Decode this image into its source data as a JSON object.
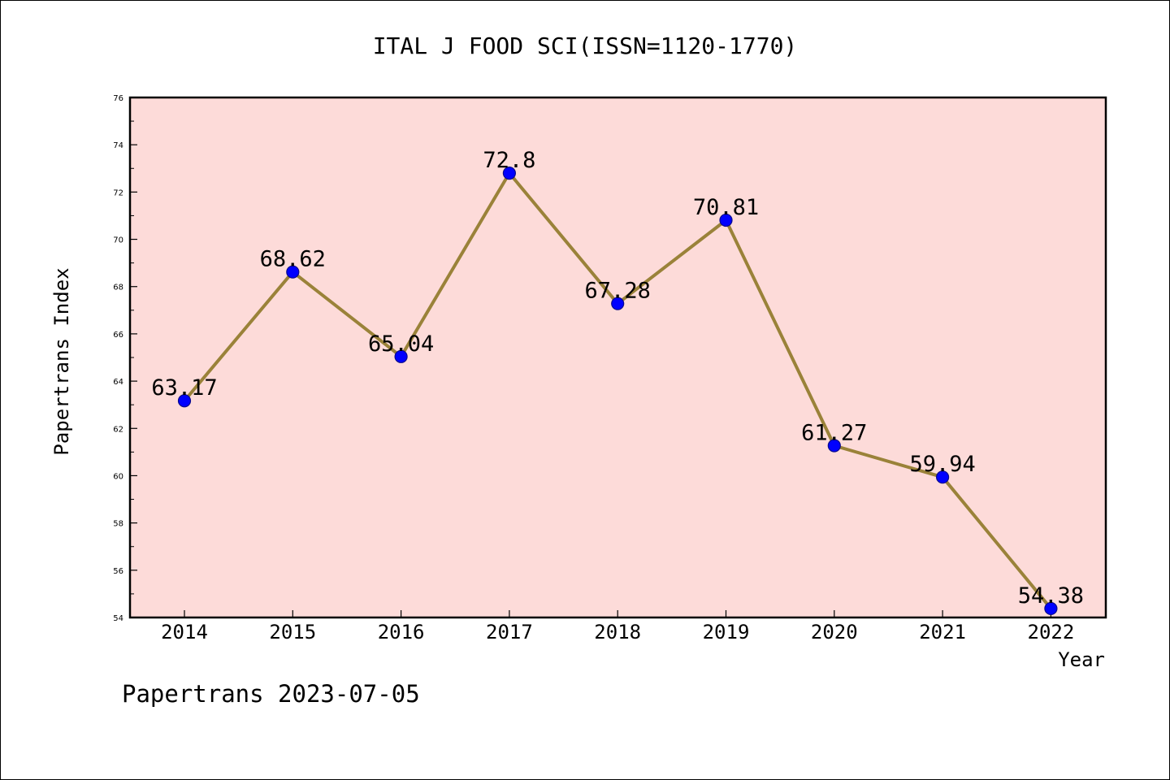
{
  "chart_data": {
    "type": "line",
    "title": "ITAL J FOOD SCI(ISSN=1120-1770)",
    "xlabel": "Year",
    "ylabel": "Papertrans Index",
    "categories": [
      "2014",
      "2015",
      "2016",
      "2017",
      "2018",
      "2019",
      "2020",
      "2021",
      "2022"
    ],
    "series": [
      {
        "values": [
          63.17,
          68.62,
          65.04,
          72.8,
          67.28,
          70.81,
          61.27,
          59.94,
          54.38
        ],
        "labels": [
          "63.17",
          "68.62",
          "65.04",
          "72.8",
          "67.28",
          "70.81",
          "61.27",
          "59.94",
          "54.38"
        ]
      }
    ],
    "ylim": [
      54,
      76
    ],
    "yticks": [
      "54",
      "56",
      "58",
      "60",
      "62",
      "64",
      "66",
      "68",
      "70",
      "72",
      "74",
      "76"
    ],
    "grid": false,
    "colors": {
      "plot_background": "#FDDBD9",
      "line": "#9A8239",
      "marker_fill": "#0000FF",
      "marker_edge": "#0A0A8C"
    }
  },
  "footer": {
    "text": "Papertrans 2023-07-05"
  }
}
